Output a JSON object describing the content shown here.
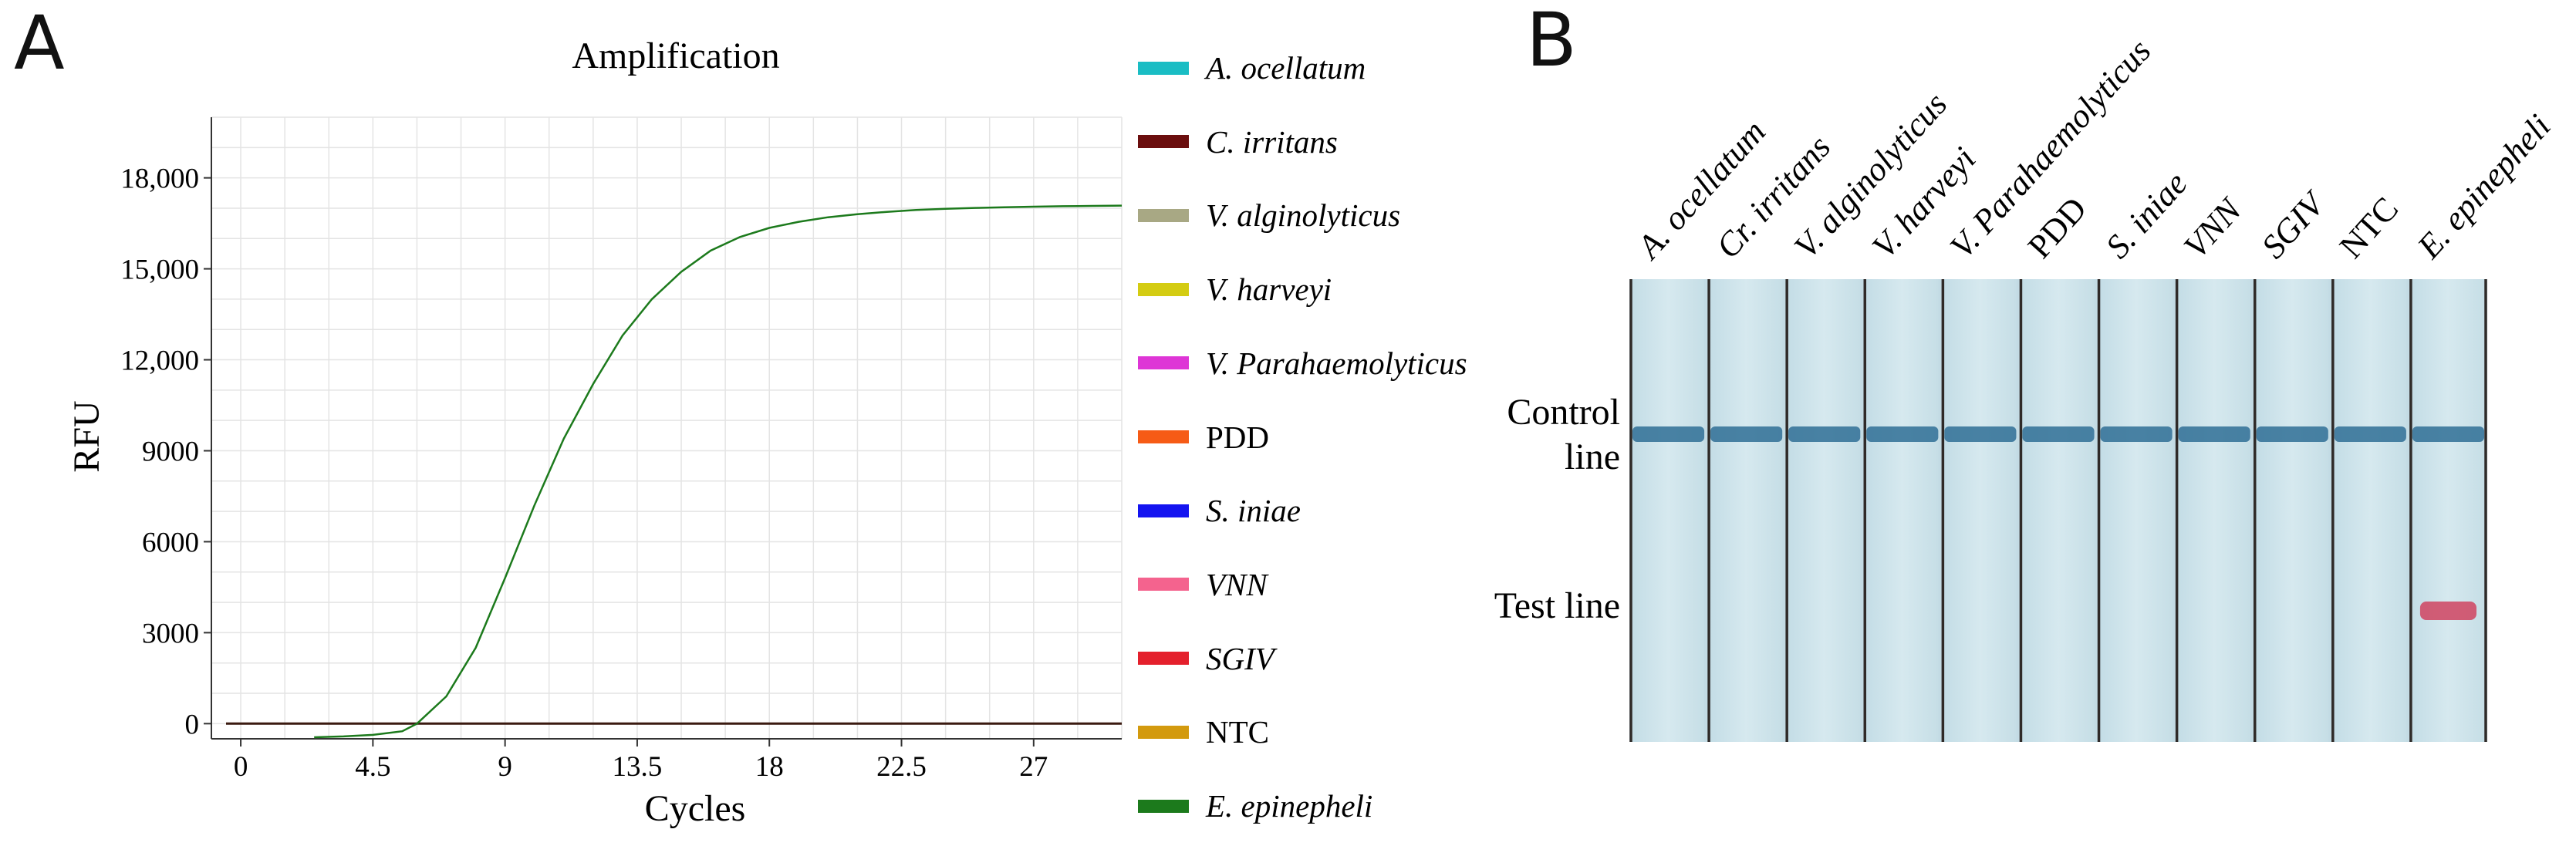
{
  "panel_a": {
    "letter": "A"
  },
  "panel_b": {
    "letter": "B",
    "lane_labels": [
      "A. ocellatum",
      "Cr. irritans",
      "V. alginolyticus",
      "V. harveyi",
      "V. Parahaemolyticus",
      "PDD",
      "S. iniae",
      "VNN",
      "SGIV",
      "NTC",
      "E. epinepheli"
    ],
    "lane_italic": [
      true,
      true,
      true,
      true,
      true,
      false,
      true,
      true,
      true,
      false,
      true
    ],
    "control_line_label": "Control line",
    "test_line_label": "Test line",
    "test_line_positive_lane": "E. epinepheli"
  },
  "chart_data": {
    "type": "line",
    "title": "Amplification",
    "xlabel": "Cycles",
    "ylabel": "RFU",
    "xlim": [
      -1,
      30
    ],
    "ylim": [
      -500,
      20000
    ],
    "xticks": [
      0,
      4.5,
      9,
      13.5,
      18,
      22.5,
      27
    ],
    "xtick_labels": [
      "0",
      "4.5",
      "9",
      "13.5",
      "18",
      "22.5",
      "27"
    ],
    "yticks": [
      0,
      3000,
      6000,
      9000,
      12000,
      15000,
      18000
    ],
    "ytick_labels": [
      "0",
      "3000",
      "6000",
      "9000",
      "12,000",
      "15,000",
      "18,000"
    ],
    "grid": true,
    "series": [
      {
        "name": "A. ocellatum",
        "italic": true,
        "color": "#1ABDC4",
        "x": [],
        "y": []
      },
      {
        "name": "C. irritans",
        "italic": true,
        "color": "#6B0E0E",
        "x": [
          -0.5,
          30
        ],
        "y": [
          0,
          0
        ]
      },
      {
        "name": "V. alginolyticus",
        "italic": true,
        "color": "#A8A884",
        "x": [],
        "y": []
      },
      {
        "name": "V. harveyi",
        "italic": true,
        "color": "#D4CC12",
        "x": [],
        "y": []
      },
      {
        "name": "V. Parahaemolyticus",
        "italic": true,
        "color": "#DE35D6",
        "x": [],
        "y": []
      },
      {
        "name": "PDD",
        "italic": false,
        "color": "#F65B16",
        "x": [],
        "y": []
      },
      {
        "name": "S. iniae",
        "italic": true,
        "color": "#1414F0",
        "x": [],
        "y": []
      },
      {
        "name": "VNN",
        "italic": true,
        "color": "#F4638E",
        "x": [],
        "y": []
      },
      {
        "name": "SGIV",
        "italic": true,
        "color": "#E4202C",
        "x": [],
        "y": []
      },
      {
        "name": "NTC",
        "italic": false,
        "color": "#D39A0E",
        "x": [],
        "y": []
      },
      {
        "name": "E. epinepheli",
        "italic": true,
        "color": "#1C7A1C",
        "x": [
          2.5,
          3.5,
          4.5,
          5.5,
          6,
          7,
          8,
          9,
          10,
          11,
          12,
          13,
          14,
          15,
          16,
          17,
          18,
          19,
          20,
          21,
          22,
          23,
          24,
          25,
          26,
          27,
          28,
          29,
          30
        ],
        "y": [
          -450,
          -420,
          -370,
          -250,
          0,
          900,
          2500,
          4800,
          7200,
          9400,
          11200,
          12800,
          14000,
          14900,
          15600,
          16050,
          16350,
          16550,
          16700,
          16800,
          16880,
          16940,
          16980,
          17010,
          17030,
          17050,
          17065,
          17075,
          17085
        ]
      }
    ]
  }
}
